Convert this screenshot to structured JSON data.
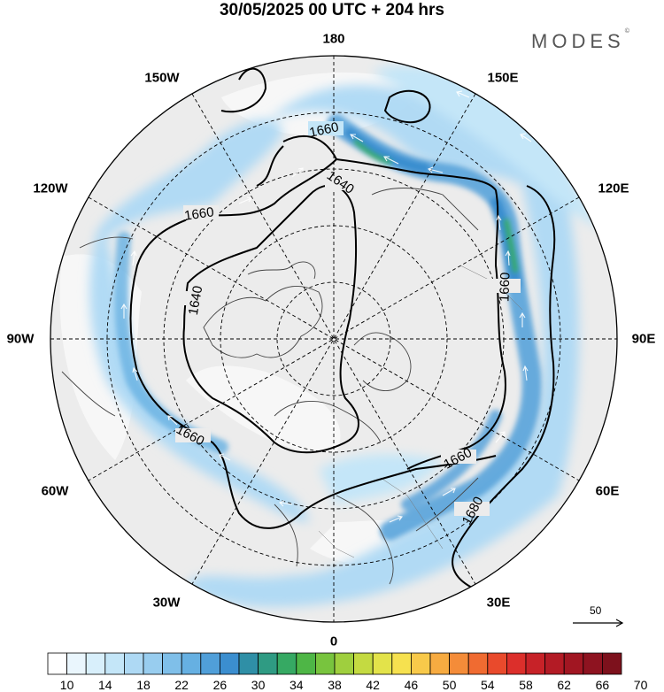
{
  "title": "30/05/2025  00 UTC  + 204 hrs",
  "brand": "MODES",
  "brand_mark": "©",
  "longitude_labels": {
    "n180": "180",
    "e150": "150E",
    "e120": "120E",
    "e90": "90E",
    "e60": "60E",
    "e30": "30E",
    "n0": "0",
    "w30": "30W",
    "w60": "60W",
    "w90": "90W",
    "w120": "120W",
    "w150": "150W"
  },
  "contour_labels": [
    "1660",
    "1640",
    "1660",
    "1640",
    "1660",
    "1660",
    "1660",
    "1680"
  ],
  "vector_scale": {
    "label": "50"
  },
  "colorbar": {
    "ticks": [
      "10",
      "14",
      "18",
      "22",
      "26",
      "30",
      "34",
      "38",
      "42",
      "46",
      "50",
      "54",
      "58",
      "62",
      "66",
      "70"
    ],
    "colors": [
      "#ffffff",
      "#eaf6fd",
      "#d8effb",
      "#c4e6f8",
      "#aed9f4",
      "#98cdef",
      "#7fbfe9",
      "#66b0e2",
      "#509fd9",
      "#3b8ecf",
      "#2f8fa6",
      "#2f9b83",
      "#36a963",
      "#4eb646",
      "#78c43e",
      "#9fcf3e",
      "#c4da41",
      "#e3e34a",
      "#f6e14f",
      "#f8c94a",
      "#f7ab41",
      "#f48c39",
      "#f06b31",
      "#e94a2c",
      "#dc2f2b",
      "#c72228",
      "#b31b25",
      "#a11622",
      "#8e1320",
      "#7d111c"
    ]
  },
  "colors": {
    "land": "#ececec",
    "ocean": "#ffffff",
    "jet_core": "#3b8ecf",
    "jet_peak": "#4eb646"
  }
}
